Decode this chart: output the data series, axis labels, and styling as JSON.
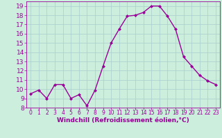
{
  "x": [
    0,
    1,
    2,
    3,
    4,
    5,
    6,
    7,
    8,
    9,
    10,
    11,
    12,
    13,
    14,
    15,
    16,
    17,
    18,
    19,
    20,
    21,
    22,
    23
  ],
  "y": [
    9.5,
    9.9,
    9.0,
    10.5,
    10.5,
    9.0,
    9.4,
    8.2,
    9.9,
    12.5,
    15.0,
    16.5,
    17.9,
    18.0,
    18.3,
    19.0,
    19.0,
    17.9,
    16.5,
    13.5,
    12.5,
    11.5,
    10.9,
    10.5
  ],
  "line_color": "#990099",
  "marker": "D",
  "marker_size": 2.0,
  "line_width": 1.0,
  "bg_color": "#cceedd",
  "grid_color": "#aacccc",
  "xlabel": "Windchill (Refroidissement éolien,°C)",
  "xlabel_color": "#990099",
  "tick_color": "#990099",
  "xlim": [
    -0.5,
    23.5
  ],
  "ylim": [
    8,
    19.5
  ],
  "yticks": [
    8,
    9,
    10,
    11,
    12,
    13,
    14,
    15,
    16,
    17,
    18,
    19
  ],
  "xticks": [
    0,
    1,
    2,
    3,
    4,
    5,
    6,
    7,
    8,
    9,
    10,
    11,
    12,
    13,
    14,
    15,
    16,
    17,
    18,
    19,
    20,
    21,
    22,
    23
  ],
  "ytick_fontsize": 6.5,
  "xtick_fontsize": 5.5,
  "xlabel_fontsize": 6.5
}
